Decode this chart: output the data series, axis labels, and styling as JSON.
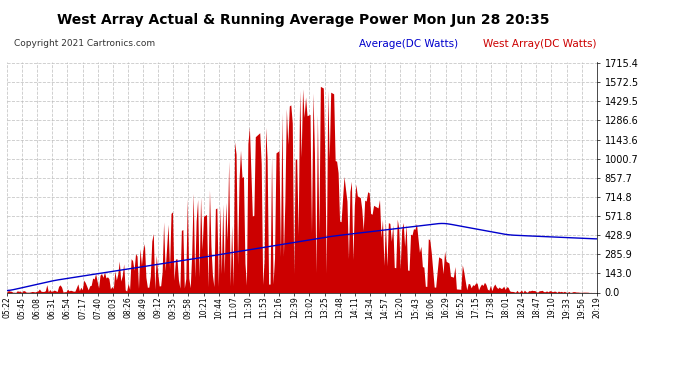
{
  "title": "West Array Actual & Running Average Power Mon Jun 28 20:35",
  "copyright": "Copyright 2021 Cartronics.com",
  "legend_avg": "Average(DC Watts)",
  "legend_west": "West Array(DC Watts)",
  "yticks": [
    0.0,
    143.0,
    285.9,
    428.9,
    571.8,
    714.8,
    857.7,
    1000.7,
    1143.6,
    1286.6,
    1429.5,
    1572.5,
    1715.4
  ],
  "ymax": 1715.4,
  "bg_color": "#ffffff",
  "plot_bg_color": "#ffffff",
  "grid_color": "#bbbbbb",
  "red_color": "#cc0000",
  "blue_color": "#0000cc",
  "title_color": "#000000",
  "xtick_labels": [
    "05:22",
    "05:45",
    "06:08",
    "06:31",
    "06:54",
    "07:17",
    "07:40",
    "08:03",
    "08:26",
    "08:49",
    "09:12",
    "09:35",
    "09:58",
    "10:21",
    "10:44",
    "11:07",
    "11:30",
    "11:53",
    "12:16",
    "12:39",
    "13:02",
    "13:25",
    "13:48",
    "14:11",
    "14:34",
    "14:57",
    "15:20",
    "15:43",
    "16:06",
    "16:29",
    "16:52",
    "17:15",
    "17:38",
    "18:01",
    "18:24",
    "18:47",
    "19:10",
    "19:33",
    "19:56",
    "20:19"
  ],
  "num_points": 400
}
